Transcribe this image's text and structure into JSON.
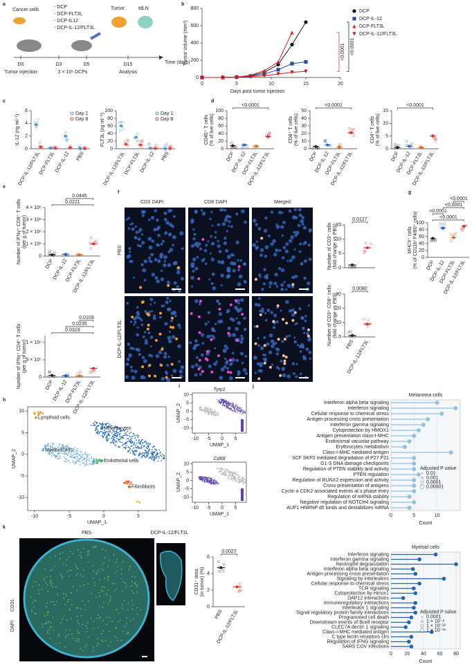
{
  "a": {
    "letter": "a",
    "cancer": "Cancer cells",
    "treatments": [
      "- DCP",
      "- DCP-FLT3L",
      "- DCP-IL12",
      "- DCP-IL-12/FLT3L"
    ],
    "tumor": "Tumor",
    "tdln": "tdLN",
    "days": [
      "D0",
      "D3",
      "D5",
      "D15"
    ],
    "time": "Time (days)",
    "events": [
      "Tumor injection",
      "3 × 10⁶ DCPs",
      "Analysis"
    ]
  },
  "b": {
    "letter": "b",
    "type": "line",
    "ylabel": "Tumor volume (mm³)",
    "xlabel": "Days post tumor injection",
    "xlim": [
      0,
      20
    ],
    "xticks": [
      0,
      5,
      10,
      15,
      20
    ],
    "ylim": [
      0,
      800
    ],
    "yticks": [
      0,
      200,
      400,
      600,
      800
    ],
    "x": [
      0,
      3,
      5,
      7,
      9,
      11,
      13,
      15
    ],
    "series": [
      {
        "name": "DCP",
        "color": "#111111",
        "values": [
          0,
          0,
          5,
          20,
          60,
          150,
          380,
          640
        ]
      },
      {
        "name": "DCP-IL-12",
        "color": "#2b4aa8",
        "values": [
          0,
          0,
          5,
          15,
          40,
          90,
          160,
          180
        ]
      },
      {
        "name": "DCP-FLT3L",
        "color": "#e02020",
        "values": [
          0,
          0,
          5,
          25,
          80,
          180,
          520,
          null
        ]
      },
      {
        "name": "DCP-IL-12/FLT3L",
        "color": "#c81818",
        "values": [
          0,
          0,
          3,
          10,
          20,
          40,
          60,
          70
        ]
      }
    ],
    "annotations": [
      {
        "text": "<0.0001",
        "color": "#111111"
      },
      {
        "text": "<0.0001",
        "color": "#e02020"
      }
    ]
  },
  "c": {
    "letter": "c",
    "plots": [
      {
        "ylabel": [
          "IL-12 (ng ml⁻¹)"
        ],
        "categories": [
          "DCP-IL-12/FLT3L",
          "DCP-FLT3L",
          "DCP-IL-12",
          "PBS"
        ],
        "ylim": [
          0,
          6
        ],
        "yticks": [
          0,
          2,
          4,
          6
        ],
        "series": [
          {
            "name": "Day 1",
            "color": "#4a8fd8",
            "values": [
              3.8,
              0.1,
              2.0,
              0
            ]
          },
          {
            "name": "Day 8",
            "color": "#e04040",
            "values": [
              0.3,
              0.05,
              0.2,
              0
            ]
          }
        ]
      },
      {
        "ylabel": [
          "FLT3L (ng ml⁻¹)"
        ],
        "categories": [
          "DCP-IL-12/FLT3L",
          "DCP-FLT3L",
          "DCP-IL-12",
          "PBS"
        ],
        "ylim": [
          0,
          100
        ],
        "yticks": [
          0,
          20,
          40,
          60,
          80,
          100
        ],
        "series": [
          {
            "name": "Day 1",
            "color": "#4a8fd8",
            "values": [
              60,
              30,
              1,
              0
            ]
          },
          {
            "name": "Day 8",
            "color": "#e04040",
            "values": [
              12,
              10,
              0.5,
              0
            ]
          }
        ]
      }
    ]
  },
  "d": {
    "letter": "d",
    "plots": [
      {
        "ylabel": [
          "CD45⁺ T cells",
          "(% of live cells)"
        ],
        "categories": [
          "DCP",
          "DCP-IL-12",
          "DCP-FLT3L",
          "DCP-IL-12/FLT3L"
        ],
        "ylim": [
          0,
          100
        ],
        "yticks": [
          0,
          20,
          40,
          60,
          80,
          100
        ],
        "colors": [
          "#222222",
          "#3060c0",
          "#d07030",
          "#e03030"
        ],
        "values": [
          8,
          10,
          7,
          32
        ],
        "annotations": [
          "<0.0001"
        ]
      },
      {
        "ylabel": [
          "CD8⁺ T cells",
          "(% of live cells)"
        ],
        "categories": [
          "DCP",
          "DCP-IL-12",
          "DCP-FLT3L",
          "DCP-IL-12/FLT3L"
        ],
        "ylim": [
          0,
          50
        ],
        "yticks": [
          0,
          10,
          20,
          30,
          40,
          50
        ],
        "colors": [
          "#222222",
          "#3060c0",
          "#d07030",
          "#e03030"
        ],
        "values": [
          3,
          5,
          2,
          21
        ],
        "annotations": [
          "<0.0001"
        ]
      },
      {
        "ylabel": [
          "CD4⁺ T cells",
          "(% of live cells)"
        ],
        "categories": [
          "DCP",
          "DCP-IL-12",
          "DCP-FLT3L",
          "DCP-IL-12/FLT3L"
        ],
        "ylim": [
          0,
          15
        ],
        "yticks": [
          0,
          5,
          10,
          15
        ],
        "colors": [
          "#222222",
          "#3060c0",
          "#d07030",
          "#e03030"
        ],
        "values": [
          0.5,
          1,
          0.5,
          5
        ],
        "annotations": [
          "<0.0001"
        ]
      }
    ]
  },
  "e": {
    "letter": "e",
    "plots": [
      {
        "ylabel": [
          "Number of IFNγ⁺ CD8⁺ T cells",
          "(per g of tumor)"
        ],
        "categories": [
          "DCP",
          "DCP-IL-12",
          "DCP-FLT3L",
          "DCP-IL-12/FLT3L"
        ],
        "ylim": [
          0,
          4000000
        ],
        "yticks": [
          0,
          {
            "value": 1000000,
            "label": "1 × 10⁶"
          },
          {
            "value": 2000000,
            "label": "2 × 10⁶"
          },
          {
            "value": 3000000,
            "label": "3 × 10⁶"
          },
          {
            "value": 4000000,
            "label": "4 × 10⁶"
          }
        ],
        "colors": [
          "#222222",
          "#3060c0",
          "#d07030",
          "#e03030"
        ],
        "values": [
          100000,
          150000,
          100000,
          1000000
        ],
        "annotations": [
          "0.0221",
          "0.0445"
        ]
      },
      {
        "ylabel": [
          "Number of IFNγ⁺ CD4⁺ T cells",
          "(per g of tumor)"
        ],
        "categories": [
          "DCP",
          "DCP-IL-12",
          "DCP-FLT3L",
          "DCP-IL-12/FLT3L"
        ],
        "ylim": [
          0,
          1200000
        ],
        "yticks": [
          0,
          {
            "value": 500000,
            "label": "5 × 10⁵"
          },
          {
            "value": 1000000,
            "label": "1 × 10⁶"
          }
        ],
        "colors": [
          "#222222",
          "#3060c0",
          "#d07030",
          "#e03030"
        ],
        "values": [
          50000,
          40000,
          30000,
          250000
        ],
        "annotations": [
          "0.0319",
          "0.0235",
          "0.0109"
        ]
      }
    ]
  },
  "f": {
    "letter": "f",
    "headers": [
      [
        {
          "text": "CD3",
          "color": "#f0a030"
        },
        {
          "text": "DAPI",
          "color": "#4060d0"
        }
      ],
      [
        {
          "text": "CD8",
          "color": "#d040c0"
        },
        {
          "text": "DAPI",
          "color": "#4060d0"
        }
      ],
      [
        {
          "text": "Merged",
          "color": "#222222"
        }
      ]
    ],
    "rows": [
      "PBS",
      "DCP-IL-12/FLT3L"
    ],
    "plots": [
      {
        "ylabel": [
          "Number of CD3⁺ cells",
          "(fold change vs PBS)"
        ],
        "ylim": [
          0,
          15
        ],
        "yticks": [
          0,
          5,
          10,
          15
        ],
        "colors": [
          "#222222",
          "#e03030"
        ],
        "values": [
          1,
          7
        ],
        "annotations": [
          "0.0127"
        ]
      },
      {
        "ylabel": [
          "Number of CD3⁺ CD8⁺ cells",
          "(fold change vs PBS)"
        ],
        "categories": [
          "PBS",
          "DCP-IL-12/FLT3L"
        ],
        "ylim": [
          0,
          30
        ],
        "yticks": [
          0,
          10,
          20,
          30
        ],
        "colors": [
          "#222222",
          "#e03030"
        ],
        "values": [
          1,
          9
        ],
        "annotations": [
          "0.0080"
        ]
      }
    ]
  },
  "g": {
    "letter": "g",
    "ylabel": [
      "MHCII⁺ cells",
      "(% of CD11b⁺F4/80⁺ cells)"
    ],
    "categories": [
      "DCP",
      "DCP-IL-12",
      "DCP-FLT3L",
      "DCP-IL-12/FLT3L"
    ],
    "ylim": [
      0,
      100
    ],
    "yticks": [
      0,
      20,
      40,
      60,
      80,
      100
    ],
    "colors": [
      "#222222",
      "#3060c0",
      "#d07030",
      "#e03030"
    ],
    "values": [
      55,
      85,
      57,
      90
    ],
    "annotations": [
      "<0.0001",
      "<0.0001",
      "<0.0001",
      "<0.0001"
    ]
  },
  "h": {
    "letter": "h",
    "xlabel": "UMAP_1",
    "ylabel": "UMAP_2",
    "xlim": [
      -11,
      9
    ],
    "ylim": [
      -13,
      11
    ],
    "xticks": [
      -10,
      -5,
      0,
      5
    ],
    "yticks": [
      -10,
      -5,
      0,
      5,
      10
    ],
    "clusters": [
      "Lymphoid cells",
      "Melanocytes",
      "Myeloid cells",
      "Endothelial cells",
      "Fibroblasts"
    ]
  },
  "i": {
    "letter": "i",
    "plots": [
      {
        "gene": "Tyrp1",
        "xlabel": "UMAP_1",
        "ylabel": "UMAP_2",
        "xlim": [
          -11,
          9
        ],
        "ylim": [
          -13,
          11
        ],
        "xticks": [
          -10,
          -5,
          0,
          5
        ],
        "yticks": [
          -10,
          -5,
          0,
          5,
          10
        ]
      },
      {
        "gene": "Cd68",
        "xlabel": "UMAP_1",
        "ylabel": "UMAP_2",
        "xlim": [
          -11,
          9
        ],
        "ylim": [
          -13,
          11
        ],
        "xticks": [
          -10,
          -5,
          0,
          5
        ],
        "yticks": [
          -10,
          -5,
          0,
          5,
          10
        ]
      }
    ]
  },
  "j": {
    "letter": "j",
    "plots": [
      {
        "title": "Melanoma cells",
        "xlabel": "Count",
        "color": "#8ec3e6",
        "xlim": [
          0,
          15
        ],
        "xticks": [
          0,
          5,
          10
        ],
        "legend_title": "Adjusted P value",
        "legend": [
          "0.01",
          "0.001",
          "0.0001",
          "0.00001"
        ],
        "terms": [
          "Interferon alpha beta signaling",
          "Interferon signaling",
          "Cellular response to chemical stress",
          "Antigen processing cross presentation",
          "Interferon gamma signaling",
          "Cytoprotection by HMOX1",
          "Antigen presentation class-I-MHC",
          "Endosomal vacuolar pathway",
          "Erythrocytes metabolism",
          "Class-I-MHC mediated antigen",
          "SCF SKP2 mediated degradation of P27 P21",
          "G1-S DNA damage checkpoints",
          "Regulation of PTEN stability and activity",
          "PTEN regulation",
          "Regulation of RUNX2 expression and activity",
          "Cross presentation of antigens",
          "Cyclin a CDK2 associated events at s phase entry",
          "Regulation of mRNA stability",
          "Negative regulation of NOTCH4 signaling",
          "AUF1 HNRNP d0 binds and destabilizes mRNA"
        ],
        "values": [
          10,
          14,
          11,
          8,
          7,
          6,
          5,
          4,
          3,
          13,
          5,
          5,
          5,
          6,
          5,
          5,
          5,
          4,
          5,
          4
        ]
      },
      {
        "title": "Myeloid cells",
        "xlabel": "Count",
        "color": "#2565a8",
        "xlim": [
          0,
          85
        ],
        "xticks": [
          0,
          20,
          40,
          60,
          80
        ],
        "legend_title": "Adjusted P value",
        "legend": [
          "0.0001",
          "1 × 10⁻⁸",
          "1 × 10⁻¹²",
          "1 × 10⁻¹⁶"
        ],
        "terms": [
          "Interferon signaling",
          "Interferon gamma signaling",
          "Neutrophil degranulation",
          "Interferon alpha beta signaling",
          "Antigen processing cross presentation",
          "Signaling by interleukins",
          "Cellular response to chemical stress",
          "TCR signaling",
          "Cytoprotection by Hmox1",
          "DAP12 interactions",
          "Immunoregulatory interactions",
          "Interleukin 1 signaling",
          "Signal regulatory protein family interactions",
          "Programmed cell death",
          "Downstream events of Bcell receptor",
          "CLEC7A dectin 1 signaling",
          "Class-I-MHC mediated antigen",
          "C type lectin receptors clrs",
          "Regulation of IFNG signaling",
          "SARS COV infections"
        ],
        "values": [
          55,
          35,
          80,
          27,
          30,
          65,
          35,
          28,
          30,
          15,
          30,
          28,
          30,
          25,
          22,
          18,
          50,
          25,
          22,
          25
        ]
      }
    ]
  },
  "k": {
    "letter": "k",
    "images": [
      "PBS",
      "DCP-IL-12/FLT3L"
    ],
    "stain": [
      {
        "text": "CD31",
        "color": "#30a040"
      },
      {
        "text": "DAPI",
        "color": "#4060d0"
      }
    ],
    "plot": {
      "ylabel": [
        "CD31⁺ area",
        "(in tumor) (%)"
      ],
      "categories": [
        "PBS",
        "DCP-IL-12/FLT3L"
      ],
      "ylim": [
        0,
        6
      ],
      "yticks": [
        0,
        2,
        4,
        6
      ],
      "colors": [
        "#222222",
        "#e03030"
      ],
      "values": [
        4.7,
        2.4
      ],
      "annotations": [
        "0.0027"
      ]
    }
  }
}
